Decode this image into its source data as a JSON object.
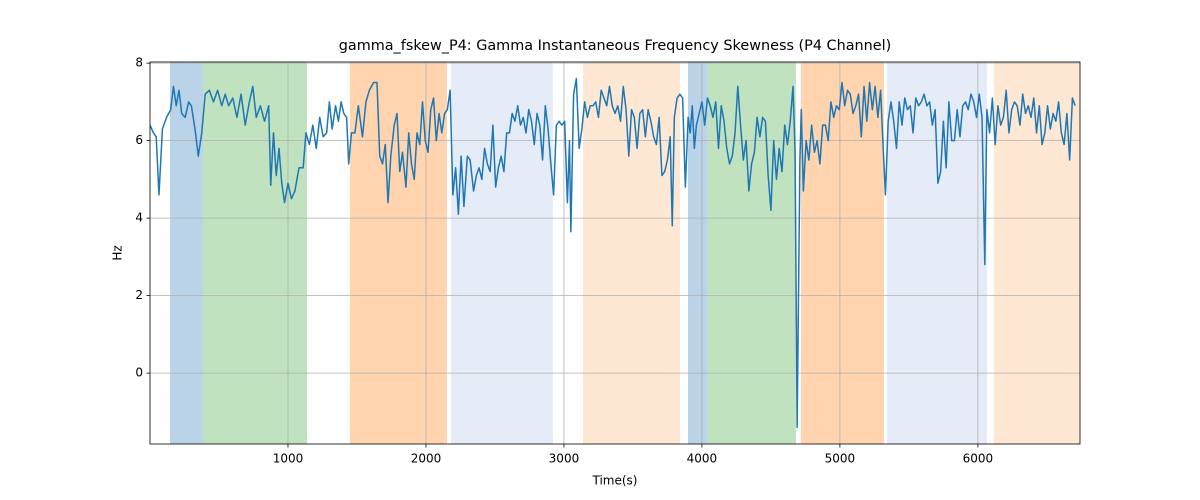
{
  "chart_data": {
    "type": "line",
    "title": "gamma_fskew_P4: Gamma Instantaneous Frequency Skewness (P4 Channel)",
    "xlabel": "Time(s)",
    "ylabel": "Hz",
    "color": "#1f77b4",
    "grid": true,
    "xlim": [
      0,
      6740
    ],
    "ylim": [
      -1.83,
      8.03
    ],
    "xticks": [
      1000,
      2000,
      3000,
      4000,
      5000,
      6000
    ],
    "yticks": [
      0,
      2,
      4,
      6,
      8
    ],
    "spans": [
      {
        "start": 145,
        "end": 384,
        "color": "#bad3e8"
      },
      {
        "start": 384,
        "end": 1138,
        "color": "#c0e2bf"
      },
      {
        "start": 1449,
        "end": 2152,
        "color": "#ffd4ae"
      },
      {
        "start": 2181,
        "end": 2920,
        "color": "#e5ecf7"
      },
      {
        "start": 3138,
        "end": 3841,
        "color": "#fee8d3"
      },
      {
        "start": 3899,
        "end": 4043,
        "color": "#bad3e8"
      },
      {
        "start": 4043,
        "end": 4681,
        "color": "#c0e2bf"
      },
      {
        "start": 4717,
        "end": 5319,
        "color": "#ffd4ae"
      },
      {
        "start": 5341,
        "end": 6065,
        "color": "#e5ecf7"
      },
      {
        "start": 6116,
        "end": 6740,
        "color": "#fee8d3"
      }
    ],
    "x": [
      0,
      25,
      45,
      65,
      90,
      120,
      150,
      170,
      190,
      210,
      230,
      255,
      280,
      300,
      330,
      350,
      375,
      400,
      430,
      460,
      490,
      520,
      545,
      570,
      600,
      630,
      660,
      690,
      720,
      745,
      770,
      800,
      830,
      860,
      875,
      895,
      915,
      935,
      955,
      975,
      1000,
      1025,
      1050,
      1080,
      1110,
      1130,
      1155,
      1180,
      1205,
      1230,
      1255,
      1280,
      1300,
      1320,
      1345,
      1365,
      1385,
      1405,
      1425,
      1440,
      1460,
      1485,
      1510,
      1540,
      1565,
      1590,
      1620,
      1645,
      1665,
      1685,
      1705,
      1725,
      1745,
      1770,
      1790,
      1810,
      1830,
      1855,
      1875,
      1895,
      1915,
      1935,
      1955,
      1975,
      1995,
      2015,
      2035,
      2055,
      2075,
      2095,
      2115,
      2135,
      2155,
      2175,
      2195,
      2215,
      2235,
      2255,
      2275,
      2300,
      2320,
      2345,
      2365,
      2385,
      2405,
      2425,
      2445,
      2465,
      2485,
      2505,
      2525,
      2545,
      2565,
      2585,
      2605,
      2625,
      2645,
      2665,
      2685,
      2705,
      2725,
      2745,
      2765,
      2785,
      2805,
      2825,
      2845,
      2865,
      2885,
      2905,
      2925,
      2945,
      2965,
      2985,
      3005,
      3025,
      3040,
      3050,
      3070,
      3090,
      3110,
      3130,
      3150,
      3170,
      3190,
      3210,
      3230,
      3250,
      3270,
      3290,
      3310,
      3330,
      3350,
      3370,
      3390,
      3410,
      3430,
      3450,
      3470,
      3490,
      3510,
      3530,
      3550,
      3570,
      3590,
      3610,
      3630,
      3650,
      3670,
      3690,
      3710,
      3730,
      3750,
      3770,
      3785,
      3800,
      3820,
      3840,
      3860,
      3880,
      3900,
      3915,
      3930,
      3945,
      3960,
      3980,
      4000,
      4020,
      4040,
      4060,
      4080,
      4100,
      4120,
      4140,
      4160,
      4180,
      4200,
      4220,
      4240,
      4260,
      4280,
      4300,
      4320,
      4340,
      4360,
      4380,
      4400,
      4420,
      4440,
      4460,
      4480,
      4500,
      4520,
      4540,
      4560,
      4580,
      4600,
      4620,
      4640,
      4660,
      4675,
      4690,
      4710,
      4720,
      4735,
      4755,
      4775,
      4795,
      4815,
      4835,
      4855,
      4875,
      4895,
      4915,
      4935,
      4955,
      4975,
      4995,
      5015,
      5035,
      5055,
      5075,
      5095,
      5115,
      5135,
      5155,
      5175,
      5195,
      5215,
      5235,
      5255,
      5275,
      5295,
      5315,
      5330,
      5350,
      5370,
      5390,
      5410,
      5430,
      5450,
      5470,
      5490,
      5510,
      5530,
      5550,
      5570,
      5590,
      5610,
      5630,
      5650,
      5670,
      5690,
      5710,
      5730,
      5750,
      5770,
      5790,
      5810,
      5830,
      5850,
      5870,
      5890,
      5910,
      5930,
      5950,
      5970,
      5990,
      6010,
      6030,
      6050,
      6065,
      6085,
      6105,
      6125,
      6145,
      6165,
      6185,
      6205,
      6225,
      6245,
      6265,
      6285,
      6305,
      6325,
      6345,
      6365,
      6385,
      6405,
      6425,
      6445,
      6465,
      6485,
      6505,
      6525,
      6545,
      6565,
      6585,
      6605,
      6625,
      6645,
      6665,
      6685,
      6705
    ],
    "values": [
      6.4,
      6.2,
      6.1,
      4.6,
      6.3,
      6.6,
      6.8,
      7.4,
      6.9,
      7.3,
      6.7,
      6.6,
      7.0,
      6.9,
      6.2,
      5.6,
      6.2,
      7.2,
      7.3,
      7.0,
      7.3,
      6.9,
      7.2,
      6.9,
      7.1,
      6.6,
      7.2,
      6.4,
      7.0,
      7.4,
      6.6,
      6.9,
      6.5,
      6.9,
      4.85,
      6.2,
      5.1,
      5.8,
      4.9,
      4.4,
      4.9,
      4.5,
      4.7,
      5.3,
      5.3,
      6.2,
      5.9,
      6.4,
      5.8,
      6.6,
      6.1,
      6.2,
      7.0,
      6.3,
      6.9,
      6.5,
      7.0,
      6.7,
      6.6,
      5.4,
      6.2,
      6.2,
      6.9,
      6.1,
      7.0,
      7.3,
      7.5,
      7.5,
      5.6,
      5.4,
      5.9,
      4.4,
      5.6,
      6.4,
      6.7,
      5.2,
      5.7,
      4.8,
      6.2,
      5.4,
      5.0,
      6.2,
      5.9,
      7.0,
      6.0,
      5.7,
      6.8,
      7.1,
      6.0,
      6.7,
      6.2,
      6.7,
      6.8,
      7.3,
      4.6,
      5.3,
      4.1,
      5.6,
      4.3,
      5.6,
      5.5,
      4.7,
      5.1,
      5.3,
      5.0,
      5.8,
      5.4,
      5.2,
      6.4,
      4.8,
      5.3,
      5.6,
      5.2,
      6.2,
      6.2,
      6.7,
      6.5,
      6.9,
      6.4,
      6.6,
      6.2,
      6.8,
      6.5,
      5.9,
      6.7,
      6.4,
      5.5,
      6.9,
      6.3,
      5.4,
      4.6,
      6.4,
      6.5,
      6.4,
      6.5,
      4.4,
      6.0,
      3.65,
      7.2,
      7.6,
      5.8,
      6.3,
      7.0,
      6.6,
      6.9,
      6.9,
      7.0,
      6.6,
      7.3,
      7.1,
      6.9,
      7.4,
      6.9,
      6.7,
      6.9,
      6.5,
      7.4,
      6.8,
      5.6,
      6.8,
      6.6,
      5.8,
      6.7,
      6.8,
      6.1,
      6.8,
      6.5,
      6.1,
      5.9,
      6.6,
      5.1,
      5.2,
      5.5,
      6.1,
      3.8,
      6.6,
      7.1,
      7.2,
      7.1,
      4.8,
      6.6,
      6.2,
      6.9,
      5.8,
      6.4,
      6.7,
      7.0,
      6.4,
      7.1,
      6.9,
      6.6,
      7.0,
      5.8,
      6.9,
      6.5,
      5.8,
      5.4,
      5.6,
      6.2,
      7.4,
      6.4,
      5.5,
      6.0,
      4.7,
      5.4,
      5.7,
      6.6,
      6.1,
      6.6,
      6.5,
      5.1,
      4.2,
      6.0,
      5.0,
      5.8,
      5.2,
      6.4,
      5.9,
      6.5,
      7.4,
      5.7,
      -1.4,
      5.5,
      6.8,
      4.7,
      6.0,
      5.5,
      6.4,
      5.7,
      6.0,
      5.4,
      6.4,
      6.4,
      6.0,
      7.0,
      6.6,
      6.9,
      6.8,
      7.5,
      6.9,
      7.3,
      7.2,
      6.7,
      6.9,
      7.2,
      6.1,
      7.4,
      6.5,
      7.5,
      6.8,
      7.4,
      6.6,
      7.3,
      5.7,
      4.6,
      6.5,
      7.0,
      6.5,
      5.8,
      7.0,
      6.4,
      7.1,
      6.8,
      6.9,
      6.2,
      7.1,
      6.9,
      7.0,
      7.2,
      6.9,
      7.0,
      6.4,
      6.8,
      4.9,
      5.2,
      6.5,
      5.3,
      7.0,
      6.0,
      6.0,
      6.8,
      6.1,
      6.9,
      7.0,
      6.8,
      7.2,
      7.0,
      6.6,
      7.2,
      6.6,
      2.8,
      6.8,
      6.2,
      7.1,
      5.9,
      6.9,
      6.4,
      6.6,
      7.3,
      6.2,
      6.8,
      7.0,
      6.9,
      6.4,
      7.2,
      6.7,
      6.9,
      6.6,
      7.1,
      6.2,
      6.9,
      5.9,
      6.2,
      6.9,
      6.3,
      6.7,
      6.5,
      7.0,
      6.2,
      5.9,
      6.7,
      5.5,
      7.1,
      6.9
    ]
  }
}
